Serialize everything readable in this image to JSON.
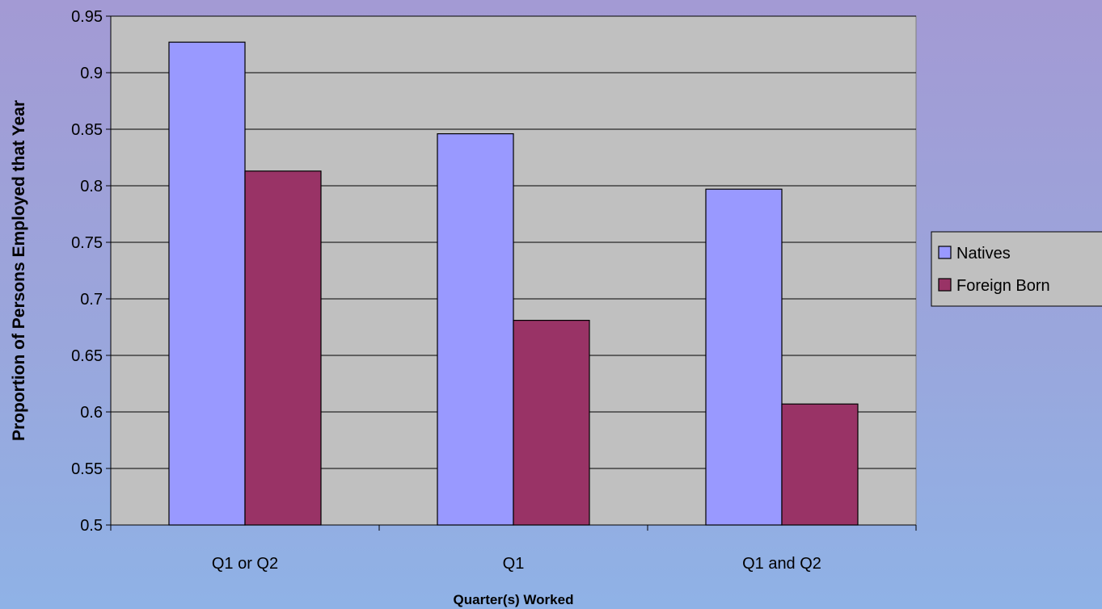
{
  "chart_data": {
    "type": "bar",
    "xlabel": "Quarter(s) Worked",
    "ylabel": "Proportion of Persons Employed that Year",
    "categories": [
      "Q1 or Q2",
      "Q1",
      "Q1 and Q2"
    ],
    "series": [
      {
        "name": "Natives",
        "values": [
          0.927,
          0.846,
          0.797
        ],
        "color": "#9999ff"
      },
      {
        "name": "Foreign Born",
        "values": [
          0.813,
          0.681,
          0.607
        ],
        "color": "#993366"
      }
    ],
    "ylim": [
      0.5,
      0.95
    ],
    "yticks": [
      "0.5",
      "0.55",
      "0.6",
      "0.65",
      "0.7",
      "0.75",
      "0.8",
      "0.85",
      "0.9",
      "0.95"
    ],
    "grid": true,
    "legend_position": "right",
    "plot_background": "#c0c0c0"
  }
}
